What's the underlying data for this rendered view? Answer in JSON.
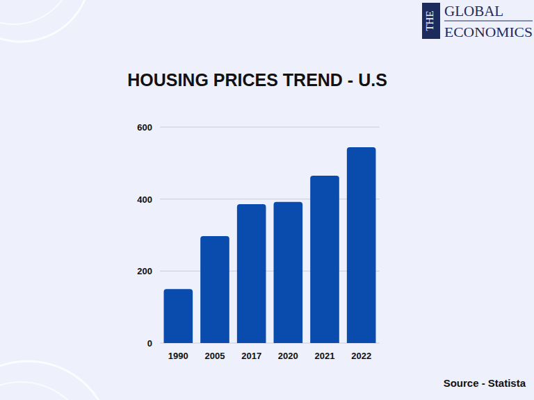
{
  "chart_data": {
    "type": "bar",
    "title": "HOUSING PRICES TREND - U.S",
    "categories": [
      "1990",
      "2005",
      "2017",
      "2020",
      "2021",
      "2022"
    ],
    "values": [
      150,
      297,
      386,
      392,
      465,
      544
    ],
    "color": "#0a4cae",
    "ylim": [
      0,
      600
    ],
    "yticks": [
      0,
      200,
      400,
      600
    ],
    "grid": true,
    "annotations": [
      "THE",
      "GLOBAL",
      "ECONOMICS",
      "Source - Statista"
    ]
  }
}
